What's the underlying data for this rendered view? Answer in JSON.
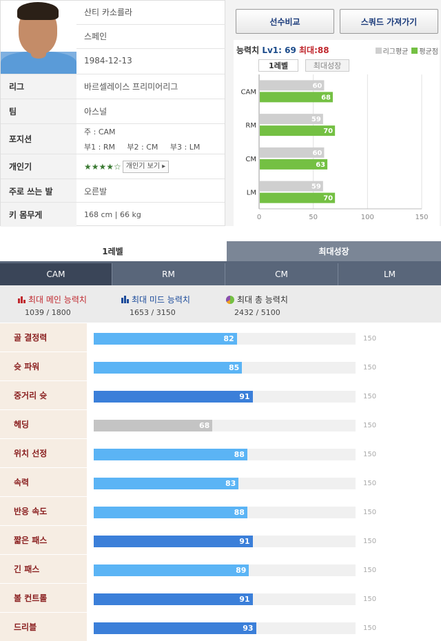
{
  "profile": {
    "name": "산티 카소를라",
    "nation": "스페인",
    "birth": "1984-12-13",
    "rows": [
      {
        "label": "리그",
        "value": "바르셀레이스 프리미어리그"
      },
      {
        "label": "팀",
        "value": "아스널"
      },
      {
        "label": "포지션",
        "value": "주 : CAM",
        "value2": "부1 : RM     부2 : CM     부3 : LM"
      },
      {
        "label": "개인기",
        "stars": "★★★★☆",
        "button": "개인기 보기 ▸"
      },
      {
        "label": "주로 쓰는 발",
        "value": "오른발"
      },
      {
        "label": "키 몸무게",
        "value": "168 cm | 66 kg"
      }
    ]
  },
  "toolbar": {
    "compare_label": "선수비교",
    "squad_label": "스쿼드 가져가기"
  },
  "chart_panel": {
    "title_prefix": "능력치",
    "title_lv": "Lv1: 69",
    "title_max": "최대:88",
    "legend_league": "리그평균",
    "legend_avg": "평균점",
    "subtab_level": "1레벨",
    "subtab_max": "최대성장",
    "colors": {
      "league": "#cfcfcf",
      "avg": "#74c043"
    }
  },
  "chart_data": {
    "type": "bar",
    "orientation": "horizontal",
    "categories": [
      "CAM",
      "RM",
      "CM",
      "LM"
    ],
    "series": [
      {
        "name": "리그평균",
        "values": [
          60,
          59,
          60,
          59
        ]
      },
      {
        "name": "평균점",
        "values": [
          68,
          70,
          63,
          70
        ]
      }
    ],
    "xlim": [
      0,
      150
    ],
    "xticks": [
      0,
      50,
      100,
      150
    ],
    "grid": true,
    "legend": "top-right"
  },
  "lower": {
    "tab_level": "1레벨",
    "tab_max": "최대성장",
    "positions": [
      "CAM",
      "RM",
      "CM",
      "LM"
    ],
    "active_position": "CAM",
    "summary": [
      {
        "title": "최대 메인 능력치",
        "value": "1039 / 1800",
        "icon": "bar-chart-red-icon"
      },
      {
        "title": "최대 미드 능력치",
        "value": "1653 / 3150",
        "icon": "bar-chart-blue-icon"
      },
      {
        "title": "최대 총 능력치",
        "value": "2432 / 5100",
        "icon": "pie-chart-icon"
      }
    ],
    "stat_max": 150,
    "stat_max_label": "150",
    "colors": {
      "light": "#5bb4f5",
      "dark": "#3b7fd9",
      "gray": "#c4c4c4"
    },
    "stats": [
      {
        "label": "골 결정력",
        "value": 82,
        "kind": "light"
      },
      {
        "label": "슛 파워",
        "value": 85,
        "kind": "light"
      },
      {
        "label": "중거리 슛",
        "value": 91,
        "kind": "dark"
      },
      {
        "label": "헤딩",
        "value": 68,
        "kind": "gray"
      },
      {
        "label": "위치 선정",
        "value": 88,
        "kind": "light"
      },
      {
        "label": "속력",
        "value": 83,
        "kind": "light"
      },
      {
        "label": "반응 속도",
        "value": 88,
        "kind": "light"
      },
      {
        "label": "짧은 패스",
        "value": 91,
        "kind": "dark"
      },
      {
        "label": "긴 패스",
        "value": 89,
        "kind": "light"
      },
      {
        "label": "볼 컨트롤",
        "value": 91,
        "kind": "dark"
      },
      {
        "label": "드리블",
        "value": 93,
        "kind": "dark"
      }
    ]
  }
}
